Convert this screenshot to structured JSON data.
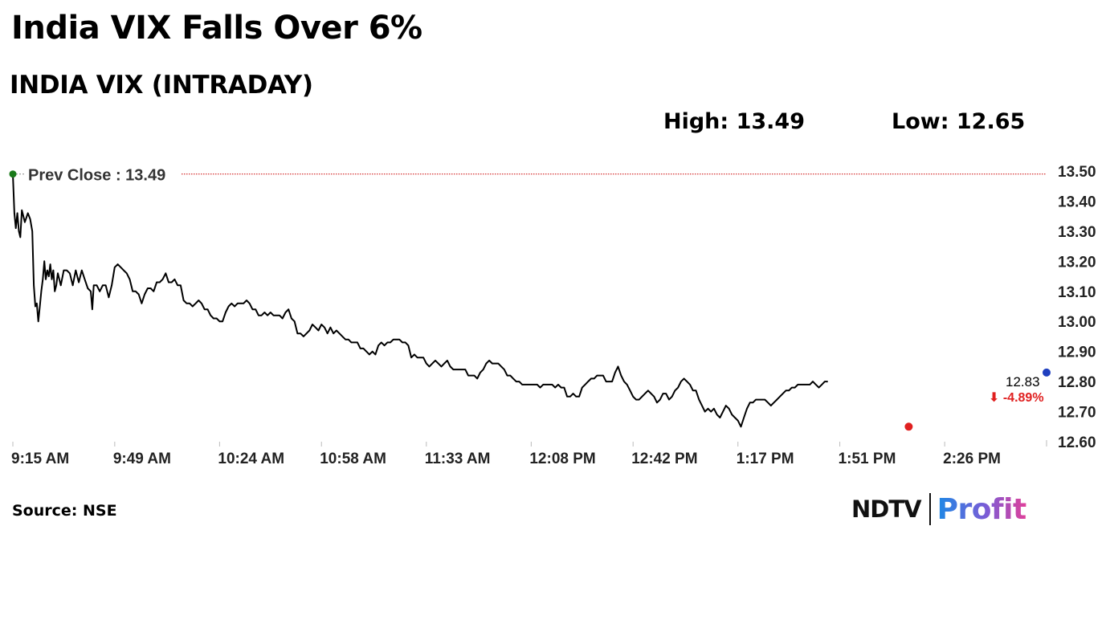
{
  "headline": "India VIX Falls Over 6%",
  "subtitle": "INDIA VIX (INTRADAY)",
  "stats": {
    "high": "High: 13.49",
    "low": "Low: 12.65"
  },
  "source": "Source: NSE",
  "logo": {
    "ndtv": "NDTV",
    "profit": "Profit"
  },
  "colors": {
    "line": "#000000",
    "prev_close": "#cc0000",
    "start_dot": "#1a7a1a",
    "low_dot": "#e02020",
    "end_dot": "#1f3fbf",
    "change": "#e02020"
  },
  "chart_data": {
    "type": "line",
    "title": "INDIA VIX (INTRADAY)",
    "xlabel": "",
    "ylabel": "",
    "ylim": [
      12.6,
      13.5
    ],
    "yticks": [
      12.6,
      12.7,
      12.8,
      12.9,
      13.0,
      13.1,
      13.2,
      13.3,
      13.4,
      13.5
    ],
    "ytick_labels": [
      "12.60",
      "12.70",
      "12.80",
      "12.90",
      "13.00",
      "13.10",
      "13.20",
      "13.30",
      "13.40",
      "13.50"
    ],
    "x_tick_labels": [
      "9:15 AM",
      "9:49 AM",
      "10:24 AM",
      "10:58 AM",
      "11:33 AM",
      "12:08 PM",
      "12:42 PM",
      "1:17 PM",
      "1:51 PM",
      "2:26 PM"
    ],
    "x_tick_minutes": [
      555,
      589,
      624,
      658,
      693,
      728,
      762,
      797,
      831,
      866
    ],
    "xlim_minutes": [
      555,
      900
    ],
    "grid": false,
    "prev_close": {
      "label": "Prev Close : 13.49",
      "value": 13.49
    },
    "last": {
      "label": "12.83",
      "value": 12.83,
      "time_minute": 900
    },
    "change_label": "⬇ -4.89%",
    "low_point": {
      "time_minute": 854,
      "value": 12.65
    },
    "series": [
      {
        "values": [
          [
            555,
            13.49
          ],
          [
            555.5,
            13.36
          ],
          [
            556,
            13.31
          ],
          [
            556.5,
            13.36
          ],
          [
            557,
            13.3
          ],
          [
            557.5,
            13.28
          ],
          [
            558,
            13.37
          ],
          [
            558.5,
            13.35
          ],
          [
            559,
            13.33
          ],
          [
            560,
            13.36
          ],
          [
            560.8,
            13.34
          ],
          [
            561.5,
            13.3
          ],
          [
            562,
            13.12
          ],
          [
            562.5,
            13.05
          ],
          [
            563,
            13.06
          ],
          [
            563.5,
            13.0
          ],
          [
            564,
            13.05
          ],
          [
            564.5,
            13.1
          ],
          [
            565,
            13.14
          ],
          [
            565.5,
            13.2
          ],
          [
            566,
            13.14
          ],
          [
            566.5,
            13.17
          ],
          [
            567,
            13.15
          ],
          [
            567.5,
            13.19
          ],
          [
            568,
            13.14
          ],
          [
            568.5,
            13.17
          ],
          [
            569,
            13.1
          ],
          [
            569.5,
            13.12
          ],
          [
            570,
            13.16
          ],
          [
            571,
            13.12
          ],
          [
            572,
            13.17
          ],
          [
            573,
            13.17
          ],
          [
            574,
            13.16
          ],
          [
            575,
            13.12
          ],
          [
            576,
            13.17
          ],
          [
            577,
            13.13
          ],
          [
            578,
            13.17
          ],
          [
            579,
            13.14
          ],
          [
            580,
            13.11
          ],
          [
            581,
            13.1
          ],
          [
            581.5,
            13.04
          ],
          [
            582,
            13.12
          ],
          [
            583,
            13.12
          ],
          [
            584,
            13.1
          ],
          [
            585,
            13.12
          ],
          [
            586,
            13.12
          ],
          [
            587,
            13.08
          ],
          [
            588,
            13.12
          ],
          [
            589,
            13.18
          ],
          [
            590,
            13.19
          ],
          [
            591,
            13.18
          ],
          [
            592,
            13.17
          ],
          [
            593,
            13.16
          ],
          [
            594,
            13.14
          ],
          [
            595,
            13.1
          ],
          [
            596,
            13.1
          ],
          [
            597,
            13.09
          ],
          [
            598,
            13.06
          ],
          [
            599,
            13.09
          ],
          [
            600,
            13.11
          ],
          [
            601,
            13.11
          ],
          [
            602,
            13.1
          ],
          [
            603,
            13.13
          ],
          [
            604,
            13.13
          ],
          [
            605,
            13.14
          ],
          [
            606,
            13.16
          ],
          [
            607,
            13.13
          ],
          [
            608,
            13.13
          ],
          [
            609,
            13.14
          ],
          [
            610,
            13.12
          ],
          [
            611,
            13.12
          ],
          [
            612,
            13.07
          ],
          [
            613,
            13.06
          ],
          [
            614,
            13.06
          ],
          [
            615,
            13.05
          ],
          [
            616,
            13.06
          ],
          [
            617,
            13.07
          ],
          [
            618,
            13.06
          ],
          [
            619,
            13.04
          ],
          [
            620,
            13.04
          ],
          [
            621,
            13.02
          ],
          [
            622,
            13.01
          ],
          [
            623,
            13.01
          ],
          [
            624,
            13.0
          ],
          [
            625,
            13.0
          ],
          [
            626,
            13.03
          ],
          [
            627,
            13.05
          ],
          [
            628,
            13.06
          ],
          [
            629,
            13.05
          ],
          [
            630,
            13.06
          ],
          [
            631,
            13.06
          ],
          [
            632,
            13.06
          ],
          [
            633,
            13.07
          ],
          [
            634,
            13.06
          ],
          [
            635,
            13.04
          ],
          [
            636,
            13.04
          ],
          [
            637,
            13.02
          ],
          [
            638,
            13.02
          ],
          [
            639,
            13.03
          ],
          [
            640,
            13.02
          ],
          [
            641,
            13.03
          ],
          [
            642,
            13.02
          ],
          [
            643,
            13.02
          ],
          [
            644,
            13.02
          ],
          [
            645,
            13.01
          ],
          [
            646,
            13.03
          ],
          [
            647,
            13.04
          ],
          [
            648,
            13.01
          ],
          [
            649,
            13.0
          ],
          [
            650,
            12.96
          ],
          [
            651,
            12.96
          ],
          [
            652,
            12.95
          ],
          [
            653,
            12.96
          ],
          [
            654,
            12.97
          ],
          [
            655,
            12.99
          ],
          [
            656,
            12.98
          ],
          [
            657,
            12.97
          ],
          [
            658,
            12.99
          ],
          [
            659,
            12.98
          ],
          [
            660,
            12.96
          ],
          [
            661,
            12.98
          ],
          [
            662,
            12.96
          ],
          [
            663,
            12.97
          ],
          [
            664,
            12.96
          ],
          [
            665,
            12.95
          ],
          [
            666,
            12.94
          ],
          [
            667,
            12.94
          ],
          [
            668,
            12.93
          ],
          [
            669,
            12.93
          ],
          [
            670,
            12.93
          ],
          [
            671,
            12.91
          ],
          [
            672,
            12.91
          ],
          [
            673,
            12.9
          ],
          [
            674,
            12.89
          ],
          [
            675,
            12.9
          ],
          [
            676,
            12.89
          ],
          [
            677,
            12.92
          ],
          [
            678,
            12.93
          ],
          [
            679,
            12.92
          ],
          [
            680,
            12.93
          ],
          [
            681,
            12.93
          ],
          [
            682,
            12.94
          ],
          [
            683,
            12.94
          ],
          [
            684,
            12.94
          ],
          [
            685,
            12.93
          ],
          [
            686,
            12.93
          ],
          [
            687,
            12.92
          ],
          [
            688,
            12.88
          ],
          [
            689,
            12.89
          ],
          [
            690,
            12.88
          ],
          [
            691,
            12.88
          ],
          [
            692,
            12.88
          ],
          [
            693,
            12.86
          ],
          [
            694,
            12.85
          ],
          [
            695,
            12.86
          ],
          [
            696,
            12.87
          ],
          [
            697,
            12.86
          ],
          [
            698,
            12.85
          ],
          [
            699,
            12.86
          ],
          [
            700,
            12.87
          ],
          [
            701,
            12.85
          ],
          [
            702,
            12.84
          ],
          [
            703,
            12.84
          ],
          [
            704,
            12.84
          ],
          [
            705,
            12.84
          ],
          [
            706,
            12.84
          ],
          [
            707,
            12.82
          ],
          [
            708,
            12.82
          ],
          [
            709,
            12.82
          ],
          [
            710,
            12.81
          ],
          [
            711,
            12.83
          ],
          [
            712,
            12.84
          ],
          [
            713,
            12.86
          ],
          [
            714,
            12.87
          ],
          [
            715,
            12.86
          ],
          [
            716,
            12.86
          ],
          [
            717,
            12.86
          ],
          [
            718,
            12.85
          ],
          [
            719,
            12.84
          ],
          [
            720,
            12.82
          ],
          [
            721,
            12.82
          ],
          [
            722,
            12.81
          ],
          [
            723,
            12.8
          ],
          [
            724,
            12.8
          ],
          [
            725,
            12.79
          ],
          [
            726,
            12.79
          ],
          [
            727,
            12.79
          ],
          [
            728,
            12.79
          ],
          [
            729,
            12.79
          ],
          [
            730,
            12.79
          ],
          [
            731,
            12.78
          ],
          [
            732,
            12.79
          ],
          [
            733,
            12.79
          ],
          [
            734,
            12.79
          ],
          [
            735,
            12.79
          ],
          [
            736,
            12.78
          ],
          [
            737,
            12.79
          ],
          [
            738,
            12.78
          ],
          [
            739,
            12.78
          ],
          [
            740,
            12.75
          ],
          [
            741,
            12.75
          ],
          [
            742,
            12.76
          ],
          [
            743,
            12.75
          ],
          [
            744,
            12.75
          ],
          [
            745,
            12.78
          ],
          [
            746,
            12.79
          ],
          [
            747,
            12.8
          ],
          [
            748,
            12.81
          ],
          [
            749,
            12.81
          ],
          [
            750,
            12.82
          ],
          [
            751,
            12.82
          ],
          [
            752,
            12.82
          ],
          [
            753,
            12.8
          ],
          [
            754,
            12.8
          ],
          [
            755,
            12.8
          ],
          [
            756,
            12.83
          ],
          [
            757,
            12.85
          ],
          [
            758,
            12.82
          ],
          [
            759,
            12.8
          ],
          [
            760,
            12.79
          ],
          [
            761,
            12.77
          ],
          [
            762,
            12.75
          ],
          [
            763,
            12.74
          ],
          [
            764,
            12.74
          ],
          [
            765,
            12.75
          ],
          [
            766,
            12.76
          ],
          [
            767,
            12.77
          ],
          [
            768,
            12.76
          ],
          [
            769,
            12.75
          ],
          [
            770,
            12.73
          ],
          [
            771,
            12.74
          ],
          [
            772,
            12.76
          ],
          [
            773,
            12.76
          ],
          [
            774,
            12.74
          ],
          [
            775,
            12.75
          ],
          [
            776,
            12.77
          ],
          [
            777,
            12.78
          ],
          [
            778,
            12.8
          ],
          [
            779,
            12.81
          ],
          [
            780,
            12.8
          ],
          [
            781,
            12.79
          ],
          [
            782,
            12.77
          ],
          [
            783,
            12.77
          ],
          [
            784,
            12.74
          ],
          [
            785,
            12.72
          ],
          [
            786,
            12.7
          ],
          [
            787,
            12.71
          ],
          [
            788,
            12.7
          ],
          [
            789,
            12.71
          ],
          [
            790,
            12.69
          ],
          [
            791,
            12.68
          ],
          [
            792,
            12.7
          ],
          [
            793,
            12.72
          ],
          [
            794,
            12.71
          ],
          [
            795,
            12.69
          ],
          [
            796,
            12.68
          ],
          [
            797,
            12.67
          ],
          [
            798,
            12.65
          ],
          [
            799,
            12.68
          ],
          [
            800,
            12.71
          ],
          [
            801,
            12.73
          ],
          [
            802,
            12.73
          ],
          [
            803,
            12.74
          ],
          [
            804,
            12.74
          ],
          [
            805,
            12.74
          ],
          [
            806,
            12.74
          ],
          [
            807,
            12.73
          ],
          [
            808,
            12.72
          ],
          [
            809,
            12.73
          ],
          [
            810,
            12.74
          ],
          [
            811,
            12.75
          ],
          [
            812,
            12.76
          ],
          [
            813,
            12.77
          ],
          [
            814,
            12.77
          ],
          [
            815,
            12.78
          ],
          [
            816,
            12.78
          ],
          [
            817,
            12.79
          ],
          [
            818,
            12.79
          ],
          [
            819,
            12.79
          ],
          [
            820,
            12.79
          ],
          [
            821,
            12.79
          ],
          [
            822,
            12.8
          ],
          [
            823,
            12.79
          ],
          [
            824,
            12.78
          ],
          [
            825,
            12.79
          ],
          [
            826,
            12.8
          ],
          [
            827,
            12.8
          ]
        ]
      }
    ]
  }
}
